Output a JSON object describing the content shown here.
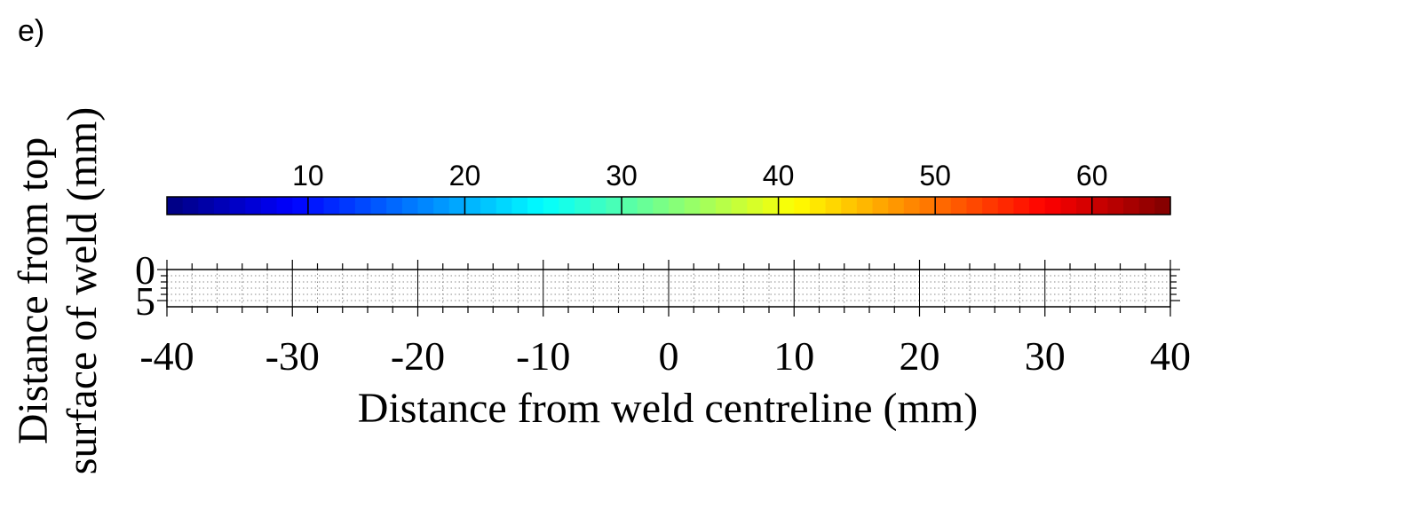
{
  "panel_label": "e)",
  "chart_data": {
    "type": "heatmap",
    "xlabel": "Distance from weld centreline (mm)",
    "ylabel_lines": [
      "Distance from top",
      "surface of weld (mm)"
    ],
    "xlim": [
      -40,
      40
    ],
    "ylim": [
      0,
      6
    ],
    "y_inverted": true,
    "x_ticks": [
      -40,
      -30,
      -20,
      -10,
      0,
      10,
      20,
      30,
      40
    ],
    "x_tick_labels": [
      "-40",
      "-30",
      "-20",
      "-10",
      "0",
      "10",
      "20",
      "30",
      "40"
    ],
    "y_ticks": [
      0,
      5
    ],
    "y_tick_labels": [
      "0",
      "5"
    ],
    "grid": true,
    "colorbar": {
      "range": [
        1,
        65
      ],
      "ticks": [
        10,
        20,
        30,
        40,
        50,
        60
      ],
      "tick_labels": [
        "10",
        "20",
        "30",
        "40",
        "50",
        "60"
      ],
      "colormap": "jet",
      "placement": "top"
    }
  }
}
